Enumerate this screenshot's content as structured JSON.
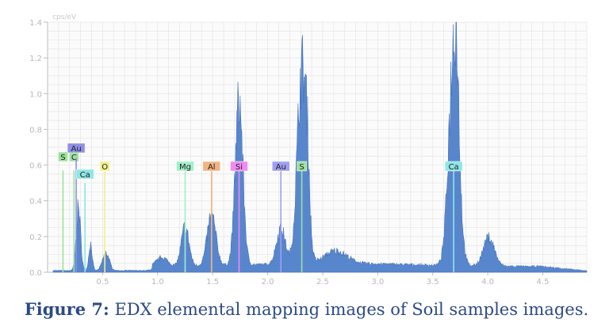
{
  "caption": {
    "label": "Figure 7:",
    "text": " EDX elemental mapping images of Soil samples images."
  },
  "chart_data": {
    "type": "area",
    "title": "",
    "ylabel": "cps/eV",
    "xlabel": "",
    "xlim": [
      0,
      4.9
    ],
    "ylim": [
      0,
      1.4
    ],
    "xticks": [
      "0.5",
      "1.0",
      "1.5",
      "2.0",
      "2.5",
      "3.0",
      "3.5",
      "4.0",
      "4.5"
    ],
    "xtick_values": [
      0.5,
      1.0,
      1.5,
      2.0,
      2.5,
      3.0,
      3.5,
      4.0,
      4.5
    ],
    "yticks": [
      "0.0",
      "0.2",
      "0.4",
      "0.6",
      "0.8",
      "1.0",
      "1.2",
      "1.4"
    ],
    "ytick_values": [
      0.0,
      0.2,
      0.4,
      0.6,
      0.8,
      1.0,
      1.2,
      1.4
    ],
    "grid": true,
    "spectrum_color": "#4f7fca",
    "baseline": 0.03,
    "peaks": [
      {
        "center": 0.28,
        "height": 0.35,
        "width": 0.02
      },
      {
        "center": 0.39,
        "height": 0.15,
        "width": 0.015
      },
      {
        "center": 0.53,
        "height": 0.1,
        "width": 0.03
      },
      {
        "center": 1.04,
        "height": 0.05,
        "width": 0.05
      },
      {
        "center": 1.25,
        "height": 0.22,
        "width": 0.035
      },
      {
        "center": 1.49,
        "height": 0.28,
        "width": 0.04
      },
      {
        "center": 1.74,
        "height": 0.92,
        "width": 0.035
      },
      {
        "center": 2.12,
        "height": 0.2,
        "width": 0.04
      },
      {
        "center": 2.31,
        "height": 1.08,
        "width": 0.042
      },
      {
        "center": 2.36,
        "height": 0.3,
        "width": 0.02
      },
      {
        "center": 2.62,
        "height": 0.07,
        "width": 0.1
      },
      {
        "center": 3.69,
        "height": 1.19,
        "width": 0.045
      },
      {
        "center": 3.72,
        "height": 0.3,
        "width": 0.02
      },
      {
        "center": 4.01,
        "height": 0.16,
        "width": 0.05
      }
    ],
    "elements": [
      {
        "label": "S",
        "energy": 0.14,
        "level": 0.57,
        "color": "#9be39b",
        "row": 0
      },
      {
        "label": "C",
        "energy": 0.24,
        "level": 0.57,
        "color": "#9be39b",
        "row": 0
      },
      {
        "label": "Au",
        "energy": 0.26,
        "level": 0.64,
        "color": "#8f8fe6",
        "row": -1
      },
      {
        "label": "Ca",
        "energy": 0.34,
        "level": 0.5,
        "color": "#8de6e6",
        "row": 1
      },
      {
        "label": "O",
        "energy": 0.52,
        "level": 0.57,
        "color": "#f0f08a",
        "row": 2
      },
      {
        "label": "Mg",
        "energy": 1.25,
        "level": 0.57,
        "color": "#9ff0c9",
        "row": 2
      },
      {
        "label": "Al",
        "energy": 1.49,
        "level": 0.57,
        "color": "#f2b482",
        "row": 2
      },
      {
        "label": "Si",
        "energy": 1.74,
        "level": 0.57,
        "color": "#f08af0",
        "row": 2
      },
      {
        "label": "Au",
        "energy": 2.12,
        "level": 0.57,
        "color": "#9f9ff2",
        "row": 2
      },
      {
        "label": "S",
        "energy": 2.31,
        "level": 0.57,
        "color": "#9be39b",
        "row": 2
      },
      {
        "label": "Ca",
        "energy": 3.69,
        "level": 0.57,
        "color": "#8de6e6",
        "row": 2
      }
    ]
  }
}
